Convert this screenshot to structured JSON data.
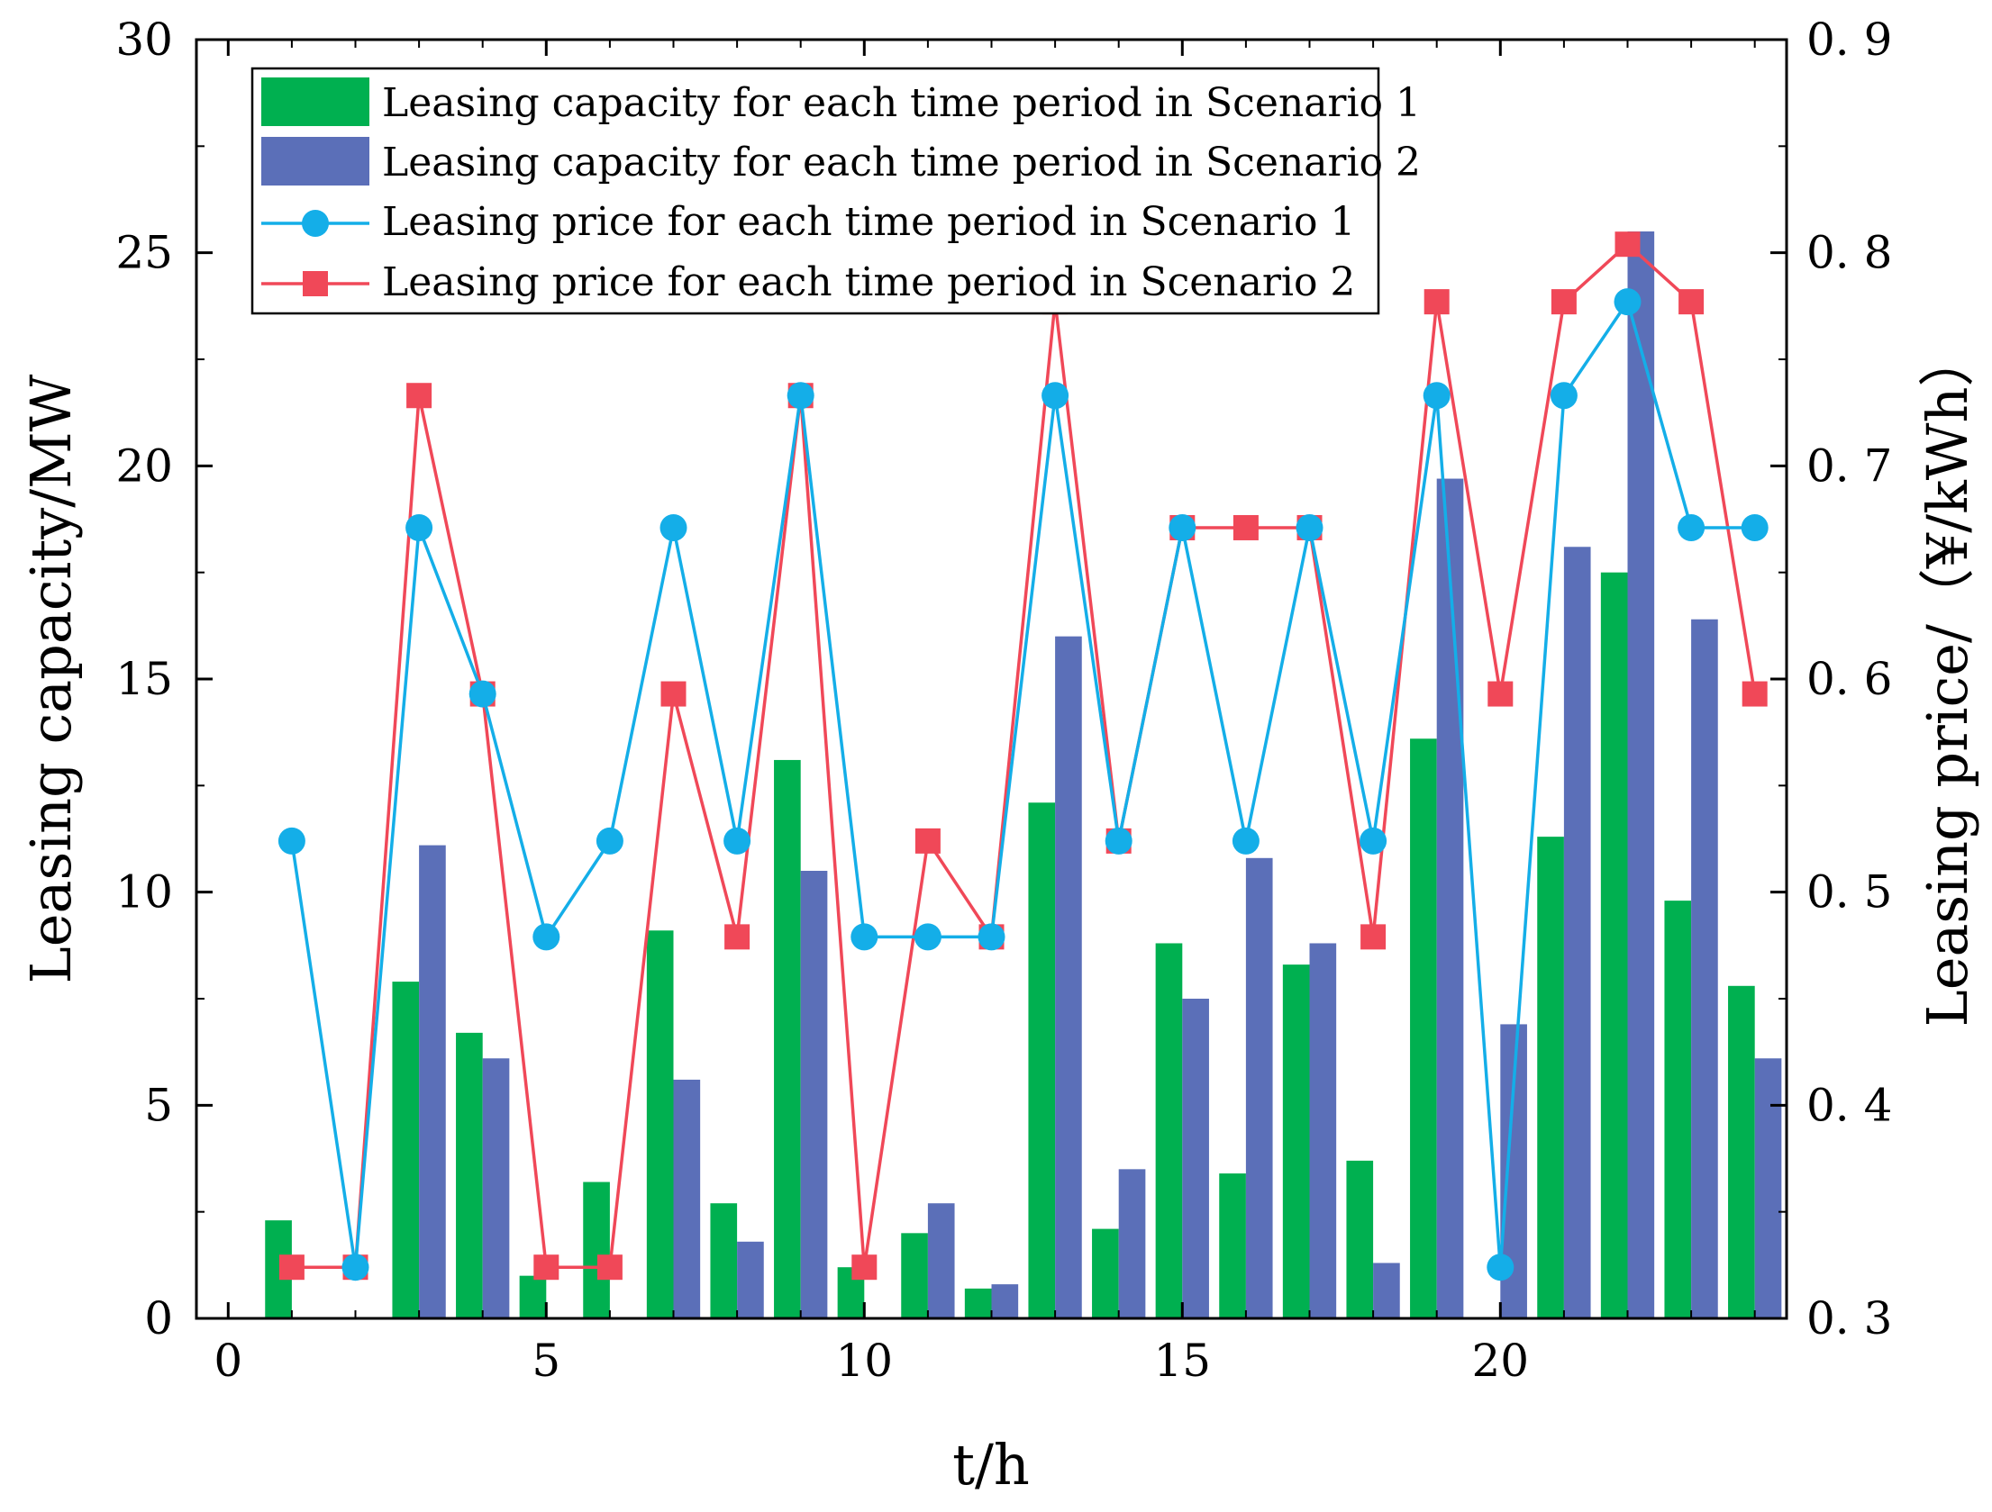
{
  "chart_data": {
    "type": "bar+line",
    "x": [
      1,
      2,
      3,
      4,
      5,
      6,
      7,
      8,
      9,
      10,
      11,
      12,
      13,
      14,
      15,
      16,
      17,
      18,
      19,
      20,
      21,
      22,
      23,
      24
    ],
    "xlabel": "t/h",
    "ylabel_left": "Leasing capacity/MW",
    "ylabel_right": "Leasing price/（¥/kWh）",
    "xlim": [
      -0.5,
      24.5
    ],
    "ylim_left": [
      0,
      30
    ],
    "ylim_right": [
      0.3,
      0.9
    ],
    "xticks": [
      0,
      5,
      10,
      15,
      20
    ],
    "xtick_labels": [
      "0",
      "5",
      "10",
      "15",
      "20"
    ],
    "yticks_left": [
      0,
      5,
      10,
      15,
      20,
      25,
      30
    ],
    "ytick_labels_left": [
      "0",
      "5",
      "10",
      "15",
      "20",
      "25",
      "30"
    ],
    "yticks_right": [
      0.3,
      0.4,
      0.5,
      0.6,
      0.7,
      0.8,
      0.9
    ],
    "ytick_labels_right": [
      "0. 3",
      "0. 4",
      "0. 5",
      "0. 6",
      "0. 7",
      "0. 8",
      "0. 9"
    ],
    "legend_position": "top-left",
    "bar_series": [
      {
        "name": "Leasing capacity for each time period in Scenario 1",
        "color": "#00b050",
        "values": [
          2.3,
          0,
          7.9,
          6.7,
          1.0,
          3.2,
          9.1,
          2.7,
          13.1,
          1.2,
          2.0,
          0.7,
          12.1,
          2.1,
          8.8,
          3.4,
          8.3,
          3.7,
          13.6,
          0,
          11.3,
          17.5,
          9.8,
          7.8
        ]
      },
      {
        "name": "Leasing capacity for each time period in Scenario 2",
        "color": "#5b6fb8",
        "values": [
          0,
          0,
          11.1,
          6.1,
          0,
          0,
          5.6,
          1.8,
          10.5,
          0,
          2.7,
          0.8,
          16.0,
          3.5,
          7.5,
          10.8,
          8.8,
          1.3,
          19.7,
          6.9,
          18.1,
          25.5,
          16.4,
          6.1
        ]
      }
    ],
    "line_series": [
      {
        "name": "Leasing price for each time period in Scenario 1",
        "color": "#14aee8",
        "marker": "circle",
        "values": [
          0.524,
          0.324,
          0.671,
          0.593,
          0.479,
          0.524,
          0.671,
          0.524,
          0.733,
          0.479,
          0.479,
          0.479,
          0.733,
          0.524,
          0.671,
          0.524,
          0.671,
          0.524,
          0.733,
          0.324,
          0.733,
          0.777,
          0.671,
          0.671
        ]
      },
      {
        "name": "Leasing price for each time period in Scenario 2",
        "color": "#f04858",
        "marker": "square",
        "values": [
          0.324,
          0.324,
          0.733,
          0.593,
          0.324,
          0.324,
          0.593,
          0.479,
          0.733,
          0.324,
          0.524,
          0.479,
          0.777,
          0.524,
          0.671,
          0.671,
          0.671,
          0.479,
          0.777,
          0.593,
          0.777,
          0.804,
          0.777,
          0.593
        ]
      }
    ]
  }
}
